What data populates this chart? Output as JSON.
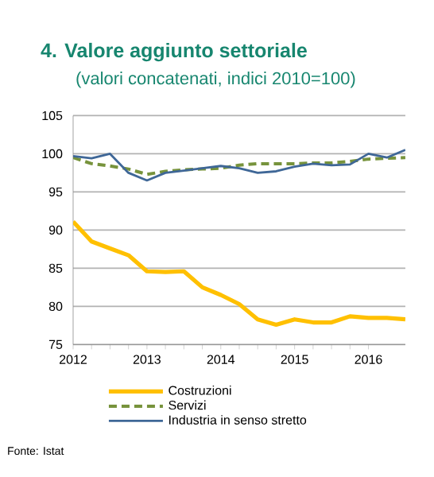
{
  "chart_data": {
    "type": "line",
    "title": "4. Valore aggiunto settoriale",
    "subtitle": "(valori concatenati, indici 2010=100)",
    "x": [
      2012,
      2012.25,
      2012.5,
      2012.75,
      2013,
      2013.25,
      2013.5,
      2013.75,
      2014,
      2014.25,
      2014.5,
      2014.75,
      2015,
      2015.25,
      2015.5,
      2015.75,
      2016,
      2016.25,
      2016.5
    ],
    "series": [
      {
        "name": "Costruzioni",
        "color": "#ffc000",
        "line_style": "solid",
        "values": [
          91.1,
          88.5,
          87.6,
          86.7,
          84.6,
          84.5,
          84.6,
          82.5,
          81.5,
          80.3,
          78.3,
          77.6,
          78.3,
          77.9,
          77.9,
          78.7,
          78.5,
          78.5,
          78.3
        ]
      },
      {
        "name": "Servizi",
        "color": "#77933c",
        "line_style": "dashed",
        "values": [
          99.5,
          98.7,
          98.4,
          98.0,
          97.3,
          97.7,
          97.9,
          98.0,
          98.1,
          98.5,
          98.7,
          98.7,
          98.7,
          98.8,
          98.8,
          99.0,
          99.3,
          99.4,
          99.5
        ]
      },
      {
        "name": "Industria in senso stretto",
        "color": "#3f6797",
        "line_style": "solid",
        "values": [
          99.7,
          99.4,
          100.0,
          97.5,
          96.5,
          97.5,
          97.8,
          98.1,
          98.4,
          98.1,
          97.5,
          97.7,
          98.3,
          98.7,
          98.5,
          98.6,
          100.0,
          99.5,
          100.5
        ]
      }
    ],
    "xlim": [
      2012,
      2016.5
    ],
    "ylim": [
      75,
      105
    ],
    "xticks": [
      2012,
      2013,
      2014,
      2015,
      2016
    ],
    "yticks": [
      75,
      80,
      85,
      90,
      95,
      100,
      105
    ],
    "grid": "y",
    "legend": "bottom",
    "annotations": [
      "Fonte: Istat"
    ]
  }
}
